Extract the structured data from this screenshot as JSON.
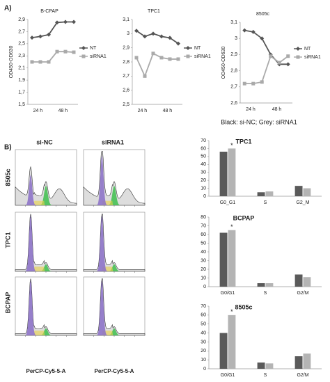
{
  "panel_labels": [
    "A)",
    "B)"
  ],
  "caption": "Black: si-NC; Grey: siRNA1",
  "flow": {
    "columns": [
      "si-NC",
      "siRNA1"
    ],
    "rows": [
      "8505c",
      "TPC1",
      "BCPAP"
    ],
    "x_label": "PerCP-Cy5-5-A"
  },
  "chart_data": [
    {
      "type": "line",
      "title": "B-CPAP",
      "y_label": "OD450-OD630",
      "categories": [
        null,
        "24 h",
        null,
        null,
        "48 h",
        null
      ],
      "series": [
        {
          "name": "NT",
          "color": "#555555",
          "marker": "diamond",
          "values": [
            2.6,
            2.62,
            2.65,
            2.85,
            2.86,
            2.86
          ]
        },
        {
          "name": "siRNA1",
          "color": "#aaaaaa",
          "marker": "square",
          "values": [
            2.2,
            2.2,
            2.2,
            2.37,
            2.37,
            2.36
          ]
        }
      ],
      "ylim": [
        1.5,
        2.9
      ],
      "yticks": [
        {
          "value": 1.5,
          "label": "1,5"
        },
        {
          "value": 1.7,
          "label": "1,7"
        },
        {
          "value": 1.9,
          "label": "1,9"
        },
        {
          "value": 2.1,
          "label": "2,1"
        },
        {
          "value": 2.3,
          "label": "2,3"
        },
        {
          "value": 2.5,
          "label": "2,5"
        },
        {
          "value": 2.7,
          "label": "2,7"
        },
        {
          "value": 2.9,
          "label": "2,9"
        }
      ],
      "legend": "right"
    },
    {
      "type": "line",
      "title": "TPC1",
      "categories": [
        null,
        "24 h",
        null,
        null,
        "48 h",
        null
      ],
      "series": [
        {
          "name": "NT",
          "color": "#555555",
          "marker": "diamond",
          "values": [
            3.02,
            2.98,
            3.0,
            2.98,
            2.97,
            2.93
          ]
        },
        {
          "name": "siRNA1",
          "color": "#aaaaaa",
          "marker": "square",
          "values": [
            2.83,
            2.7,
            2.86,
            2.83,
            2.82,
            2.82
          ]
        }
      ],
      "ylim": [
        2.5,
        3.1
      ],
      "yticks": [
        {
          "value": 2.5,
          "label": "2,5"
        },
        {
          "value": 2.6,
          "label": "2,6"
        },
        {
          "value": 2.7,
          "label": "2,7"
        },
        {
          "value": 2.8,
          "label": "2,8"
        },
        {
          "value": 2.9,
          "label": "2,9"
        },
        3,
        {
          "value": 3.1,
          "label": "3,1"
        }
      ],
      "legend": "right"
    },
    {
      "type": "line",
      "title": "8505c",
      "y_label": "OD450-OD630",
      "categories": [
        null,
        "24 h",
        null,
        null,
        "48 h",
        null
      ],
      "series": [
        {
          "name": "NT",
          "color": "#555555",
          "marker": "diamond",
          "values": [
            3.05,
            3.04,
            3.0,
            2.9,
            2.84,
            2.84
          ]
        },
        {
          "name": "siRNA1",
          "color": "#aaaaaa",
          "marker": "square",
          "values": [
            2.72,
            2.72,
            2.73,
            2.89,
            2.85,
            2.89
          ]
        }
      ],
      "ylim": [
        2.6,
        3.1
      ],
      "yticks": [
        {
          "value": 2.6,
          "label": "2,6"
        },
        {
          "value": 2.7,
          "label": "2,7"
        },
        {
          "value": 2.8,
          "label": "2,8"
        },
        {
          "value": 2.9,
          "label": "2,9"
        },
        3,
        {
          "value": 3.1,
          "label": "3,1"
        }
      ],
      "legend": "right"
    },
    {
      "type": "bar",
      "title": "TPC1",
      "categories": [
        "G0_G1",
        "S",
        "G2_M"
      ],
      "series": [
        {
          "color": "#5a5a5a",
          "values": [
            56,
            5,
            13
          ]
        },
        {
          "color": "#b4b4b4",
          "values": [
            60,
            6,
            10
          ]
        }
      ],
      "ylim": [
        0,
        70
      ],
      "yticks": [
        0,
        10,
        20,
        30,
        40,
        50,
        60,
        70
      ],
      "annotation": "*"
    },
    {
      "type": "bar",
      "title": "BCPAP",
      "categories": [
        "G0/G1",
        "S",
        "G2/M"
      ],
      "series": [
        {
          "color": "#5a5a5a",
          "values": [
            62,
            4,
            14
          ]
        },
        {
          "color": "#b4b4b4",
          "values": [
            65,
            4,
            11
          ]
        }
      ],
      "ylim": [
        0,
        80
      ],
      "yticks": [
        0,
        10,
        20,
        30,
        40,
        50,
        60,
        70,
        80
      ],
      "annotation": "*"
    },
    {
      "type": "bar",
      "title": "8505c",
      "categories": [
        "G0/G1",
        "S",
        "G2/M"
      ],
      "series": [
        {
          "color": "#5a5a5a",
          "values": [
            40,
            7,
            14
          ]
        },
        {
          "color": "#b4b4b4",
          "values": [
            60,
            6,
            17
          ]
        }
      ],
      "ylim": [
        0,
        70
      ],
      "yticks": [
        0,
        10,
        20,
        30,
        40,
        50,
        60,
        70
      ],
      "annotation": "*"
    }
  ]
}
